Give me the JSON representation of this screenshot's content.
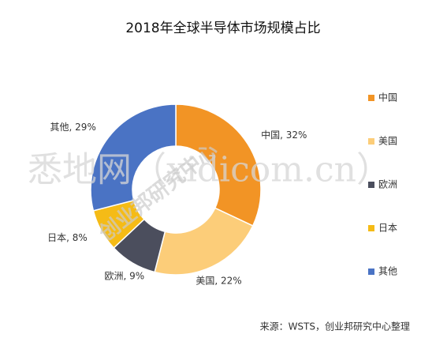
{
  "chart_data": {
    "type": "donut",
    "title": "2018年全球半导体市场规模占比",
    "categories": [
      "中国",
      "美国",
      "欧洲",
      "日本",
      "其他"
    ],
    "values": [
      32,
      22,
      9,
      8,
      29
    ],
    "value_labels": [
      "中国, 32%",
      "美国, 22%",
      "欧洲, 9%",
      "日本, 8%",
      "其他, 29%"
    ],
    "colors": [
      "#f29425",
      "#fccd79",
      "#4b4e5d",
      "#f5bb16",
      "#4a73c4"
    ],
    "legend": "right",
    "source": "来源：WSTS，创业邦研究中心整理",
    "watermarks": [
      "悉地网（xidicom.cn）",
      "创业邦研究中心"
    ]
  }
}
